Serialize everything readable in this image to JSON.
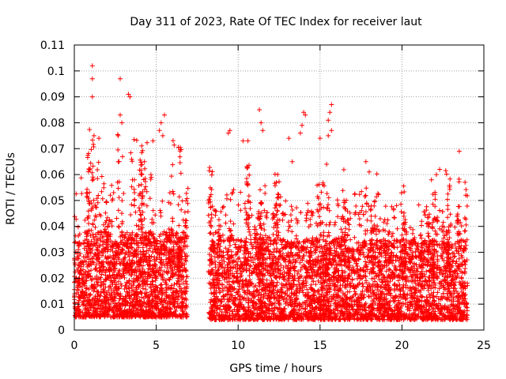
{
  "chart_data": {
    "type": "scatter",
    "title": "Day 311 of 2023, Rate Of TEC Index for receiver laut",
    "xlabel": "GPS time / hours",
    "ylabel": "ROTI / TECUs",
    "xlim": [
      0,
      25
    ],
    "ylim": [
      0,
      0.11
    ],
    "xticks": [
      0,
      5,
      10,
      15,
      20,
      25
    ],
    "xtick_labels": [
      "0",
      "5",
      "10",
      "15",
      "20",
      "25"
    ],
    "yticks": [
      0,
      0.01,
      0.02,
      0.03,
      0.04,
      0.05,
      0.06,
      0.07,
      0.08,
      0.09,
      0.1,
      0.11
    ],
    "ytick_labels": [
      "0",
      "0.01",
      "0.02",
      "0.03",
      "0.04",
      "0.05",
      "0.06",
      "0.07",
      "0.08",
      "0.09",
      "0.1",
      "0.11"
    ],
    "grid": true,
    "marker": "+",
    "color": "#ff0000",
    "data_gap_hours": [
      6.9,
      8.2
    ],
    "series": [
      {
        "name": "ROTI",
        "segments": [
          {
            "x_range": [
              0.0,
              6.9
            ],
            "baseline": [
              0.005,
              0.038
            ],
            "burst_max": 0.085
          },
          {
            "x_range": [
              8.2,
              24.0
            ],
            "baseline": [
              0.004,
              0.035
            ],
            "burst_max": 0.07
          }
        ],
        "notable_points": [
          {
            "x": 1.1,
            "y": 0.102
          },
          {
            "x": 1.1,
            "y": 0.097
          },
          {
            "x": 1.1,
            "y": 0.09
          },
          {
            "x": 2.8,
            "y": 0.097
          },
          {
            "x": 3.3,
            "y": 0.091
          },
          {
            "x": 3.4,
            "y": 0.09
          },
          {
            "x": 2.8,
            "y": 0.083
          },
          {
            "x": 2.9,
            "y": 0.08
          },
          {
            "x": 5.5,
            "y": 0.083
          },
          {
            "x": 5.3,
            "y": 0.08
          },
          {
            "x": 5.2,
            "y": 0.077
          },
          {
            "x": 5.4,
            "y": 0.075
          },
          {
            "x": 4.8,
            "y": 0.073
          },
          {
            "x": 1.5,
            "y": 0.074
          },
          {
            "x": 1.2,
            "y": 0.075
          },
          {
            "x": 9.5,
            "y": 0.077
          },
          {
            "x": 9.4,
            "y": 0.076
          },
          {
            "x": 11.3,
            "y": 0.085
          },
          {
            "x": 11.4,
            "y": 0.08
          },
          {
            "x": 11.5,
            "y": 0.077
          },
          {
            "x": 13.1,
            "y": 0.074
          },
          {
            "x": 13.3,
            "y": 0.065
          },
          {
            "x": 14.0,
            "y": 0.084
          },
          {
            "x": 14.1,
            "y": 0.083
          },
          {
            "x": 13.9,
            "y": 0.079
          },
          {
            "x": 13.8,
            "y": 0.076
          },
          {
            "x": 15.7,
            "y": 0.087
          },
          {
            "x": 15.6,
            "y": 0.084
          },
          {
            "x": 15.5,
            "y": 0.081
          },
          {
            "x": 15.7,
            "y": 0.077
          },
          {
            "x": 15.5,
            "y": 0.075
          },
          {
            "x": 15.4,
            "y": 0.064
          },
          {
            "x": 15.0,
            "y": 0.074
          },
          {
            "x": 10.3,
            "y": 0.073
          },
          {
            "x": 10.6,
            "y": 0.073
          },
          {
            "x": 17.8,
            "y": 0.065
          },
          {
            "x": 23.5,
            "y": 0.069
          },
          {
            "x": 22.3,
            "y": 0.062
          },
          {
            "x": 22.1,
            "y": 0.06
          },
          {
            "x": 21.8,
            "y": 0.058
          },
          {
            "x": 18.0,
            "y": 0.061
          }
        ]
      }
    ]
  }
}
